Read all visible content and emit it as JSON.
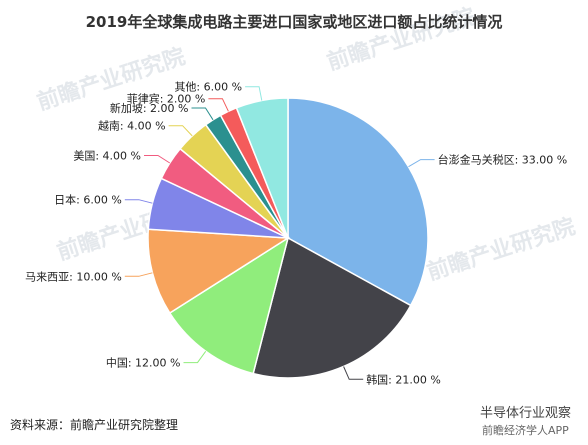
{
  "title": "2019年全球集成电路主要进口国家或地区进口额占比统计情况",
  "source": "资料来源：前瞻产业研究院整理",
  "watermarks": {
    "brand": "前瞻产业研究院",
    "corner": "半导体行业观察",
    "corner_sub": "前瞻经济学人APP"
  },
  "chart_data": {
    "type": "pie",
    "title": "2019年全球集成电路主要进口国家或地区进口额占比统计情况",
    "start_angle_deg": 0,
    "direction": "clockwise",
    "unit": "%",
    "slices": [
      {
        "label": "台澎金马关税区",
        "value": 33.0,
        "display": "台澎金马关税区: 33.00 %",
        "color": "#7cb4ea"
      },
      {
        "label": "韩国",
        "value": 21.0,
        "display": "韩国: 21.00 %",
        "color": "#434349"
      },
      {
        "label": "中国",
        "value": 12.0,
        "display": "中国: 12.00 %",
        "color": "#90ed7c"
      },
      {
        "label": "马来西亚",
        "value": 10.0,
        "display": "马来西亚: 10.00 %",
        "color": "#f7a35c"
      },
      {
        "label": "日本",
        "value": 6.0,
        "display": "日本: 6.00 %",
        "color": "#8085e9"
      },
      {
        "label": "美国",
        "value": 4.0,
        "display": "美国: 4.00 %",
        "color": "#f15c80"
      },
      {
        "label": "越南",
        "value": 4.0,
        "display": "越南: 4.00 %",
        "color": "#e4d354"
      },
      {
        "label": "新加坡",
        "value": 2.0,
        "display": "新加坡: 2.00 %",
        "color": "#2b908f"
      },
      {
        "label": "菲律宾",
        "value": 2.0,
        "display": "菲律宾: 2.00 %",
        "color": "#f45b5b"
      },
      {
        "label": "其他",
        "value": 6.0,
        "display": "其他: 6.00 %",
        "color": "#91e8e1"
      }
    ]
  }
}
